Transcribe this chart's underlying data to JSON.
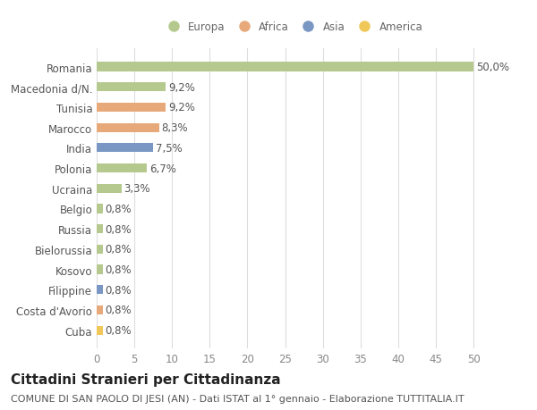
{
  "categories": [
    "Romania",
    "Macedonia d/N.",
    "Tunisia",
    "Marocco",
    "India",
    "Polonia",
    "Ucraina",
    "Belgio",
    "Russia",
    "Bielorussia",
    "Kosovo",
    "Filippine",
    "Costa d'Avorio",
    "Cuba"
  ],
  "values": [
    50.0,
    9.2,
    9.2,
    8.3,
    7.5,
    6.7,
    3.3,
    0.8,
    0.8,
    0.8,
    0.8,
    0.8,
    0.8,
    0.8
  ],
  "labels": [
    "50,0%",
    "9,2%",
    "9,2%",
    "8,3%",
    "7,5%",
    "6,7%",
    "3,3%",
    "0,8%",
    "0,8%",
    "0,8%",
    "0,8%",
    "0,8%",
    "0,8%",
    "0,8%"
  ],
  "colors": [
    "#b5c98e",
    "#b5c98e",
    "#e8a97a",
    "#e8a97a",
    "#7a96c2",
    "#b5c98e",
    "#b5c98e",
    "#b5c98e",
    "#b5c98e",
    "#b5c98e",
    "#b5c98e",
    "#7a96c2",
    "#e8a97a",
    "#f0c85a"
  ],
  "legend_labels": [
    "Europa",
    "Africa",
    "Asia",
    "America"
  ],
  "legend_colors": [
    "#b5c98e",
    "#e8a97a",
    "#7a96c2",
    "#f0c85a"
  ],
  "title": "Cittadini Stranieri per Cittadinanza",
  "subtitle": "COMUNE DI SAN PAOLO DI JESI (AN) - Dati ISTAT al 1° gennaio - Elaborazione TUTTITALIA.IT",
  "xlim": [
    0,
    52
  ],
  "xticks": [
    0,
    5,
    10,
    15,
    20,
    25,
    30,
    35,
    40,
    45,
    50
  ],
  "bg_color": "#ffffff",
  "grid_color": "#dddddd",
  "bar_height": 0.45,
  "label_fontsize": 8.5,
  "tick_fontsize": 8.5,
  "title_fontsize": 11,
  "subtitle_fontsize": 8
}
